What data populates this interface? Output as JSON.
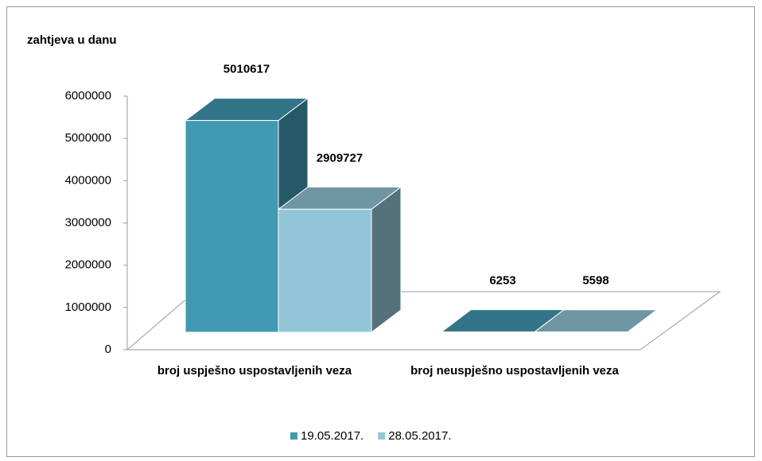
{
  "chart_data": {
    "type": "bar3d",
    "y_label": "zahtjeva u danu",
    "categories": [
      "broj uspješno uspostavljenih veza",
      "broj neuspješno uspostavljenih veza"
    ],
    "series": [
      {
        "name": "19.05.2017.",
        "color": "#4299b3",
        "values": [
          5010617,
          6253
        ]
      },
      {
        "name": "28.05.2017.",
        "color": "#92c5d5",
        "values": [
          2909727,
          5598
        ]
      }
    ],
    "ylim": [
      0,
      6000000
    ],
    "yticks": [
      0,
      1000000,
      2000000,
      3000000,
      4000000,
      5000000,
      6000000
    ],
    "grid": false,
    "legend": "bottom"
  }
}
